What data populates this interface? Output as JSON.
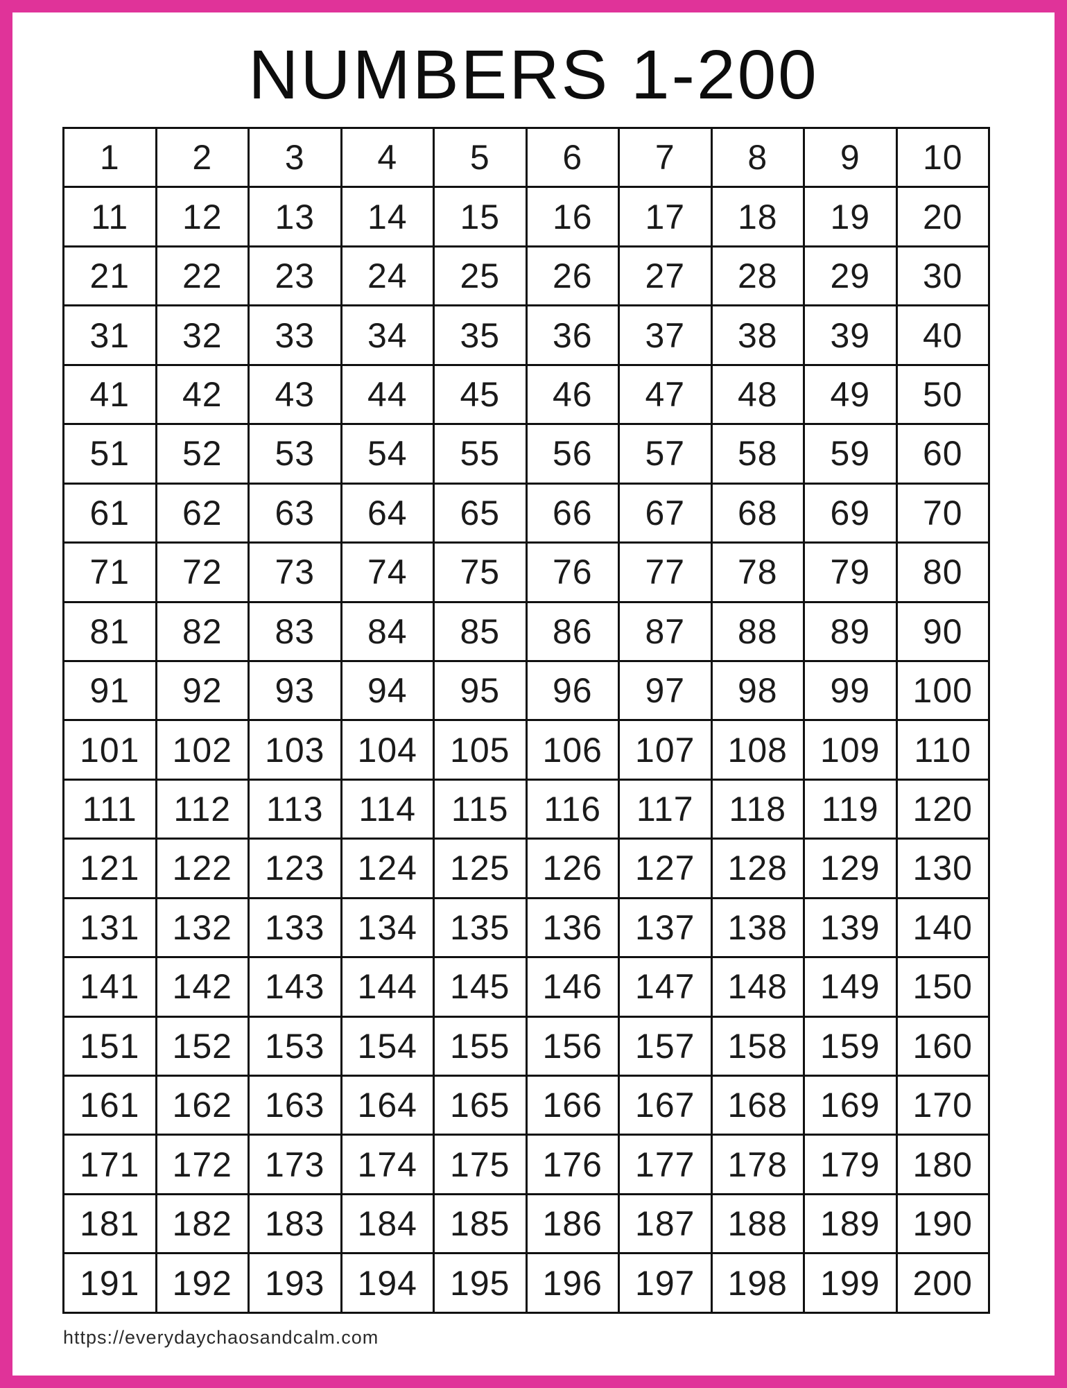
{
  "page": {
    "title": "NUMBERS 1-200",
    "footer_url": "https://everydaychaosandcalm.com",
    "border_color": "#E03399",
    "grid_line_color": "#111111",
    "text_color": "#1a1a1a"
  },
  "grid": {
    "columns": 10,
    "rows": [
      [
        1,
        2,
        3,
        4,
        5,
        6,
        7,
        8,
        9,
        10
      ],
      [
        11,
        12,
        13,
        14,
        15,
        16,
        17,
        18,
        19,
        20
      ],
      [
        21,
        22,
        23,
        24,
        25,
        26,
        27,
        28,
        29,
        30
      ],
      [
        31,
        32,
        33,
        34,
        35,
        36,
        37,
        38,
        39,
        40
      ],
      [
        41,
        42,
        43,
        44,
        45,
        46,
        47,
        48,
        49,
        50
      ],
      [
        51,
        52,
        53,
        54,
        55,
        56,
        57,
        58,
        59,
        60
      ],
      [
        61,
        62,
        63,
        64,
        65,
        66,
        67,
        68,
        69,
        70
      ],
      [
        71,
        72,
        73,
        74,
        75,
        76,
        77,
        78,
        79,
        80
      ],
      [
        81,
        82,
        83,
        84,
        85,
        86,
        87,
        88,
        89,
        90
      ],
      [
        91,
        92,
        93,
        94,
        95,
        96,
        97,
        98,
        99,
        100
      ],
      [
        101,
        102,
        103,
        104,
        105,
        106,
        107,
        108,
        109,
        110
      ],
      [
        111,
        112,
        113,
        114,
        115,
        116,
        117,
        118,
        119,
        120
      ],
      [
        121,
        122,
        123,
        124,
        125,
        126,
        127,
        128,
        129,
        130
      ],
      [
        131,
        132,
        133,
        134,
        135,
        136,
        137,
        138,
        139,
        140
      ],
      [
        141,
        142,
        143,
        144,
        145,
        146,
        147,
        148,
        149,
        150
      ],
      [
        151,
        152,
        153,
        154,
        155,
        156,
        157,
        158,
        159,
        160
      ],
      [
        161,
        162,
        163,
        164,
        165,
        166,
        167,
        168,
        169,
        170
      ],
      [
        171,
        172,
        173,
        174,
        175,
        176,
        177,
        178,
        179,
        180
      ],
      [
        181,
        182,
        183,
        184,
        185,
        186,
        187,
        188,
        189,
        190
      ],
      [
        191,
        192,
        193,
        194,
        195,
        196,
        197,
        198,
        199,
        200
      ]
    ]
  }
}
